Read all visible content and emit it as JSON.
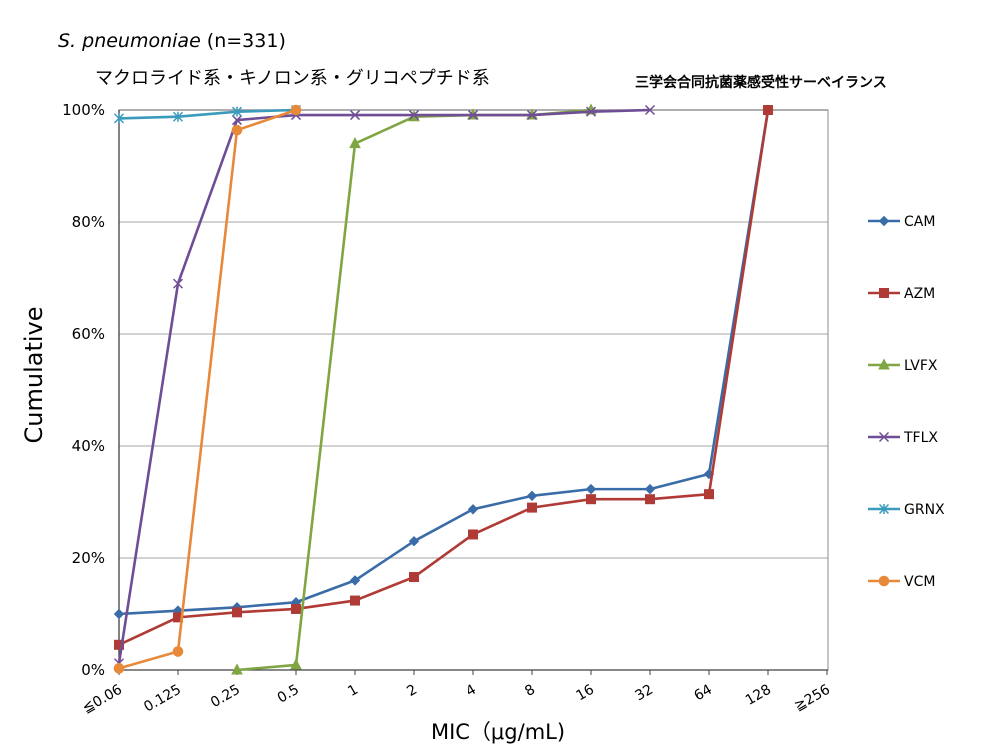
{
  "header": {
    "organism_italic": "S. pneumoniae",
    "organism_n": " (n=331)",
    "subtitle": "マクロライド系・キノロン系・グリコペプチド系",
    "source": "三学会合同抗菌薬感受性サーベイランス"
  },
  "chart_data": {
    "type": "line",
    "title": "",
    "xlabel": "MIC（μg/mL)",
    "ylabel": "Cumulative",
    "categories": [
      "≦0.06",
      "0.125",
      "0.25",
      "0.5",
      "1",
      "2",
      "4",
      "8",
      "16",
      "32",
      "64",
      "128",
      "≧256"
    ],
    "yticks": [
      "0%",
      "20%",
      "40%",
      "60%",
      "80%",
      "100%"
    ],
    "ylim": [
      0,
      100
    ],
    "grid": "horizontal",
    "legend_position": "right",
    "series": [
      {
        "name": "CAM",
        "color": "#3A6CA8",
        "marker": "diamond",
        "values": [
          10,
          10.6,
          11.2,
          12.1,
          16,
          23,
          28.7,
          31.1,
          32.3,
          32.3,
          35,
          100,
          null
        ]
      },
      {
        "name": "AZM",
        "color": "#B03A36",
        "marker": "square",
        "values": [
          4.5,
          9.4,
          10.3,
          10.9,
          12.4,
          16.6,
          24.2,
          29,
          30.5,
          30.5,
          31.4,
          100,
          null
        ]
      },
      {
        "name": "LVFX",
        "color": "#7FA642",
        "marker": "triangle",
        "values": [
          null,
          null,
          0,
          0.9,
          94,
          98.8,
          99.1,
          99.1,
          100,
          null,
          null,
          null,
          null
        ]
      },
      {
        "name": "TFLX",
        "color": "#6F4E96",
        "marker": "x",
        "values": [
          1.2,
          69,
          98.2,
          99.1,
          99.1,
          99.1,
          99.1,
          99.1,
          99.7,
          100,
          null,
          null,
          null
        ]
      },
      {
        "name": "GRNX",
        "color": "#3A9BBD",
        "marker": "star",
        "values": [
          98.5,
          98.8,
          99.7,
          100,
          null,
          null,
          null,
          null,
          null,
          null,
          null,
          null,
          null
        ]
      },
      {
        "name": "VCM",
        "color": "#E8893A",
        "marker": "circle",
        "values": [
          0.3,
          3.3,
          96.4,
          100,
          null,
          null,
          null,
          null,
          null,
          null,
          null,
          null,
          null
        ]
      }
    ]
  }
}
